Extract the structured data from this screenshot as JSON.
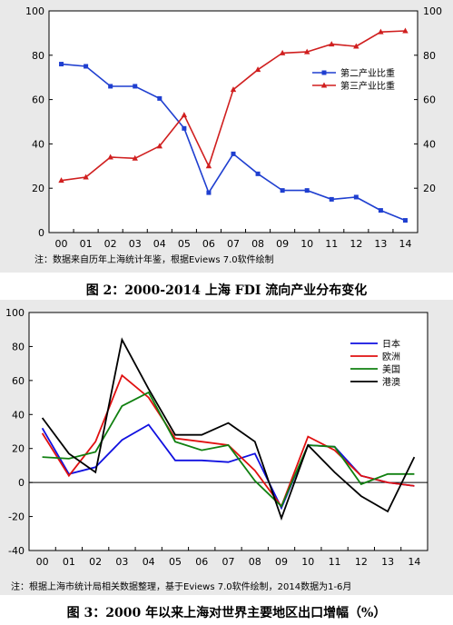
{
  "chart_data": [
    {
      "type": "line",
      "categories": [
        "00",
        "01",
        "02",
        "03",
        "04",
        "05",
        "06",
        "07",
        "08",
        "09",
        "10",
        "11",
        "12",
        "13",
        "14"
      ],
      "series": [
        {
          "name": "第二产业比重",
          "color": "#1f3fd0",
          "marker": "square",
          "values": [
            76,
            75,
            66,
            66,
            60.5,
            47,
            18,
            35.5,
            26.5,
            19,
            19,
            15,
            16,
            10,
            5.5
          ]
        },
        {
          "name": "第三产业比重",
          "color": "#d01f1f",
          "marker": "triangle",
          "values": [
            23.5,
            25,
            34,
            33.5,
            39,
            53,
            30,
            64.5,
            73.5,
            81,
            81.5,
            85,
            84,
            90.5,
            91
          ]
        }
      ],
      "ylim": [
        0,
        100
      ],
      "yticks": [
        "0",
        "20",
        "40",
        "60",
        "80",
        "100"
      ],
      "y2ticks": [
        "20",
        "40",
        "60",
        "80",
        "100"
      ],
      "note": "注：数据来自历年上海统计年鉴，根据Eviews 7.0软件绘制",
      "caption": "图 2：2000-2014 上海 FDI 流向产业分布变化"
    },
    {
      "type": "line",
      "categories": [
        "00",
        "01",
        "02",
        "03",
        "04",
        "05",
        "06",
        "07",
        "08",
        "09",
        "10",
        "11",
        "12",
        "13",
        "14"
      ],
      "series": [
        {
          "name": "日本",
          "color": "#1010e0",
          "values": [
            32,
            5,
            9,
            25,
            34,
            13,
            13,
            12,
            17,
            -15,
            22,
            21,
            4,
            0,
            -2
          ]
        },
        {
          "name": "欧洲",
          "color": "#e01010",
          "values": [
            29,
            4,
            24,
            63,
            50,
            26,
            24,
            22,
            7,
            -14,
            27,
            19,
            4,
            0,
            -2
          ]
        },
        {
          "name": "美国",
          "color": "#108010",
          "values": [
            15,
            14,
            18,
            45,
            53,
            24,
            19,
            22,
            1,
            -14,
            22,
            21,
            -1,
            5,
            5
          ]
        },
        {
          "name": "港澳",
          "color": "#000000",
          "values": [
            38,
            17,
            6,
            84,
            55,
            28,
            28,
            35,
            24,
            -21,
            22,
            6,
            -8,
            -17,
            15
          ]
        }
      ],
      "ylim": [
        -40,
        100
      ],
      "yticks": [
        "-40",
        "-20",
        "0",
        "20",
        "40",
        "60",
        "80",
        "100"
      ],
      "note": "注：根据上海市统计局相关数据整理，基于Eviews 7.0软件绘制，2014数据为1-6月",
      "caption": "图 3：2000 年以来上海对世界主要地区出口增幅（%）"
    }
  ],
  "colors": {
    "panel_background": "#e9e9e9",
    "plot_background": "#ffffff"
  }
}
